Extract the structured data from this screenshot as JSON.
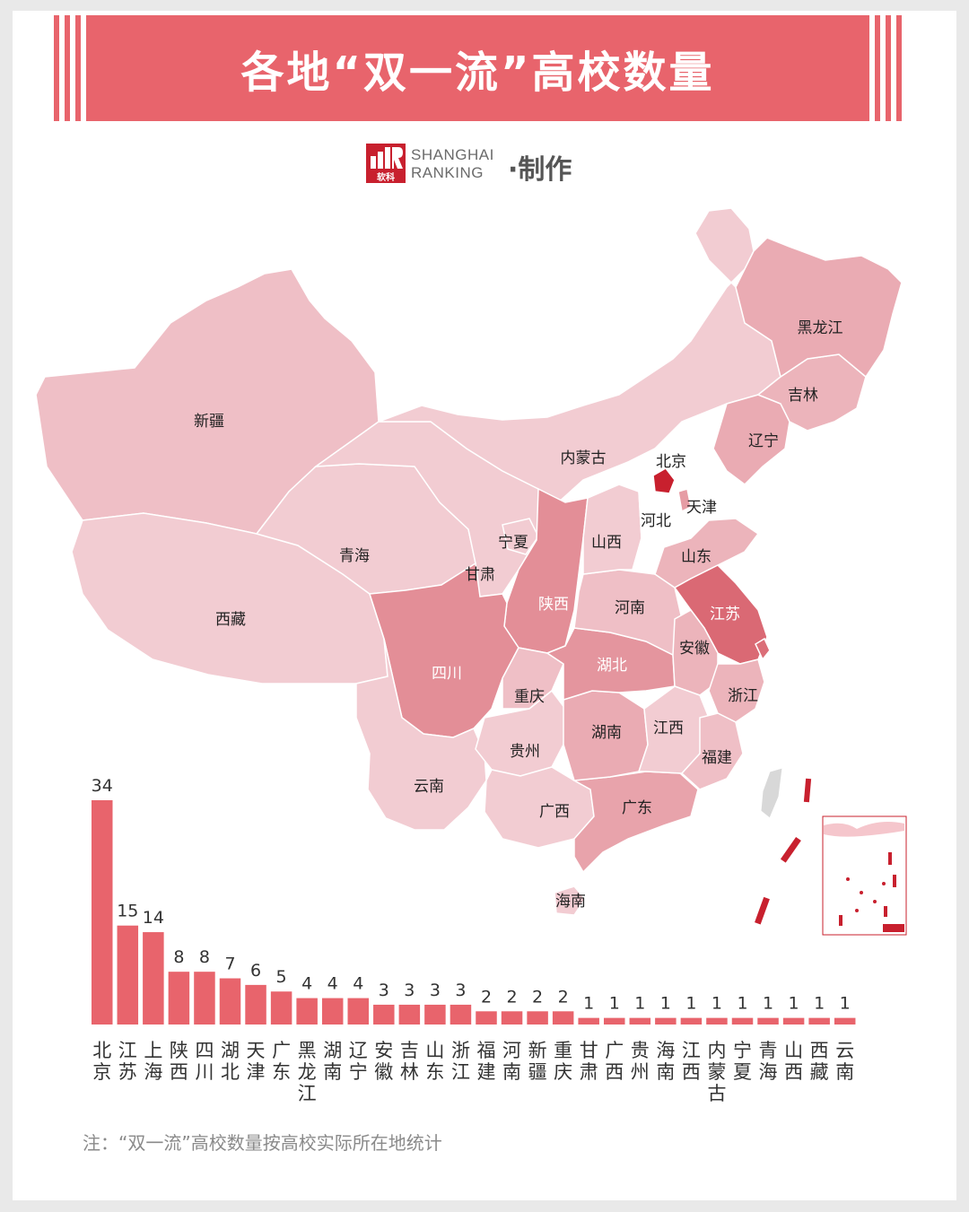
{
  "title": "各地“双一流”高校数量",
  "brand": {
    "logo_text": "软科",
    "name_line1": "SHANGHAI",
    "name_line2": "RANKING",
    "made_label": "·制作"
  },
  "map": {
    "provinces": [
      {
        "name": "新疆",
        "count": 2
      },
      {
        "name": "西藏",
        "count": 1
      },
      {
        "name": "青海",
        "count": 1
      },
      {
        "name": "甘肃",
        "count": 1
      },
      {
        "name": "内蒙古",
        "count": 1
      },
      {
        "name": "宁夏",
        "count": 1
      },
      {
        "name": "陕西",
        "count": 8
      },
      {
        "name": "四川",
        "count": 8
      },
      {
        "name": "重庆",
        "count": 2
      },
      {
        "name": "云南",
        "count": 1
      },
      {
        "name": "贵州",
        "count": 1
      },
      {
        "name": "广西",
        "count": 1
      },
      {
        "name": "广东",
        "count": 5
      },
      {
        "name": "海南",
        "count": 1
      },
      {
        "name": "湖南",
        "count": 4
      },
      {
        "name": "湖北",
        "count": 7
      },
      {
        "name": "河南",
        "count": 2
      },
      {
        "name": "山西",
        "count": 1
      },
      {
        "name": "河北",
        "count": 0
      },
      {
        "name": "北京",
        "count": 34
      },
      {
        "name": "天津",
        "count": 6
      },
      {
        "name": "山东",
        "count": 3
      },
      {
        "name": "江苏",
        "count": 15
      },
      {
        "name": "上海",
        "count": 14
      },
      {
        "name": "安徽",
        "count": 3
      },
      {
        "name": "浙江",
        "count": 3
      },
      {
        "name": "江西",
        "count": 1
      },
      {
        "name": "福建",
        "count": 2
      },
      {
        "name": "辽宁",
        "count": 4
      },
      {
        "name": "吉林",
        "count": 3
      },
      {
        "name": "黑龙江",
        "count": 4
      }
    ]
  },
  "chart_data": {
    "type": "bar",
    "categories": [
      "北京",
      "江苏",
      "上海",
      "陕西",
      "四川",
      "湖北",
      "天津",
      "广东",
      "黑龙江",
      "湖南",
      "辽宁",
      "安徽",
      "吉林",
      "山东",
      "浙江",
      "福建",
      "河南",
      "新疆",
      "重庆",
      "甘肃",
      "广西",
      "贵州",
      "海南",
      "江西",
      "内蒙古",
      "宁夏",
      "青海",
      "山西",
      "西藏",
      "云南"
    ],
    "values": [
      34,
      15,
      14,
      8,
      8,
      7,
      6,
      5,
      4,
      4,
      4,
      3,
      3,
      3,
      3,
      2,
      2,
      2,
      2,
      1,
      1,
      1,
      1,
      1,
      1,
      1,
      1,
      1,
      1,
      1
    ],
    "bar_color": "#e8646c"
  },
  "note": "注：“双一流”高校数量按高校实际所在地统计",
  "colors": {
    "banner": "#e8646c",
    "scale_low": "#f9e9ee",
    "scale_high": "#c8202e",
    "zero": "#ffffff"
  }
}
